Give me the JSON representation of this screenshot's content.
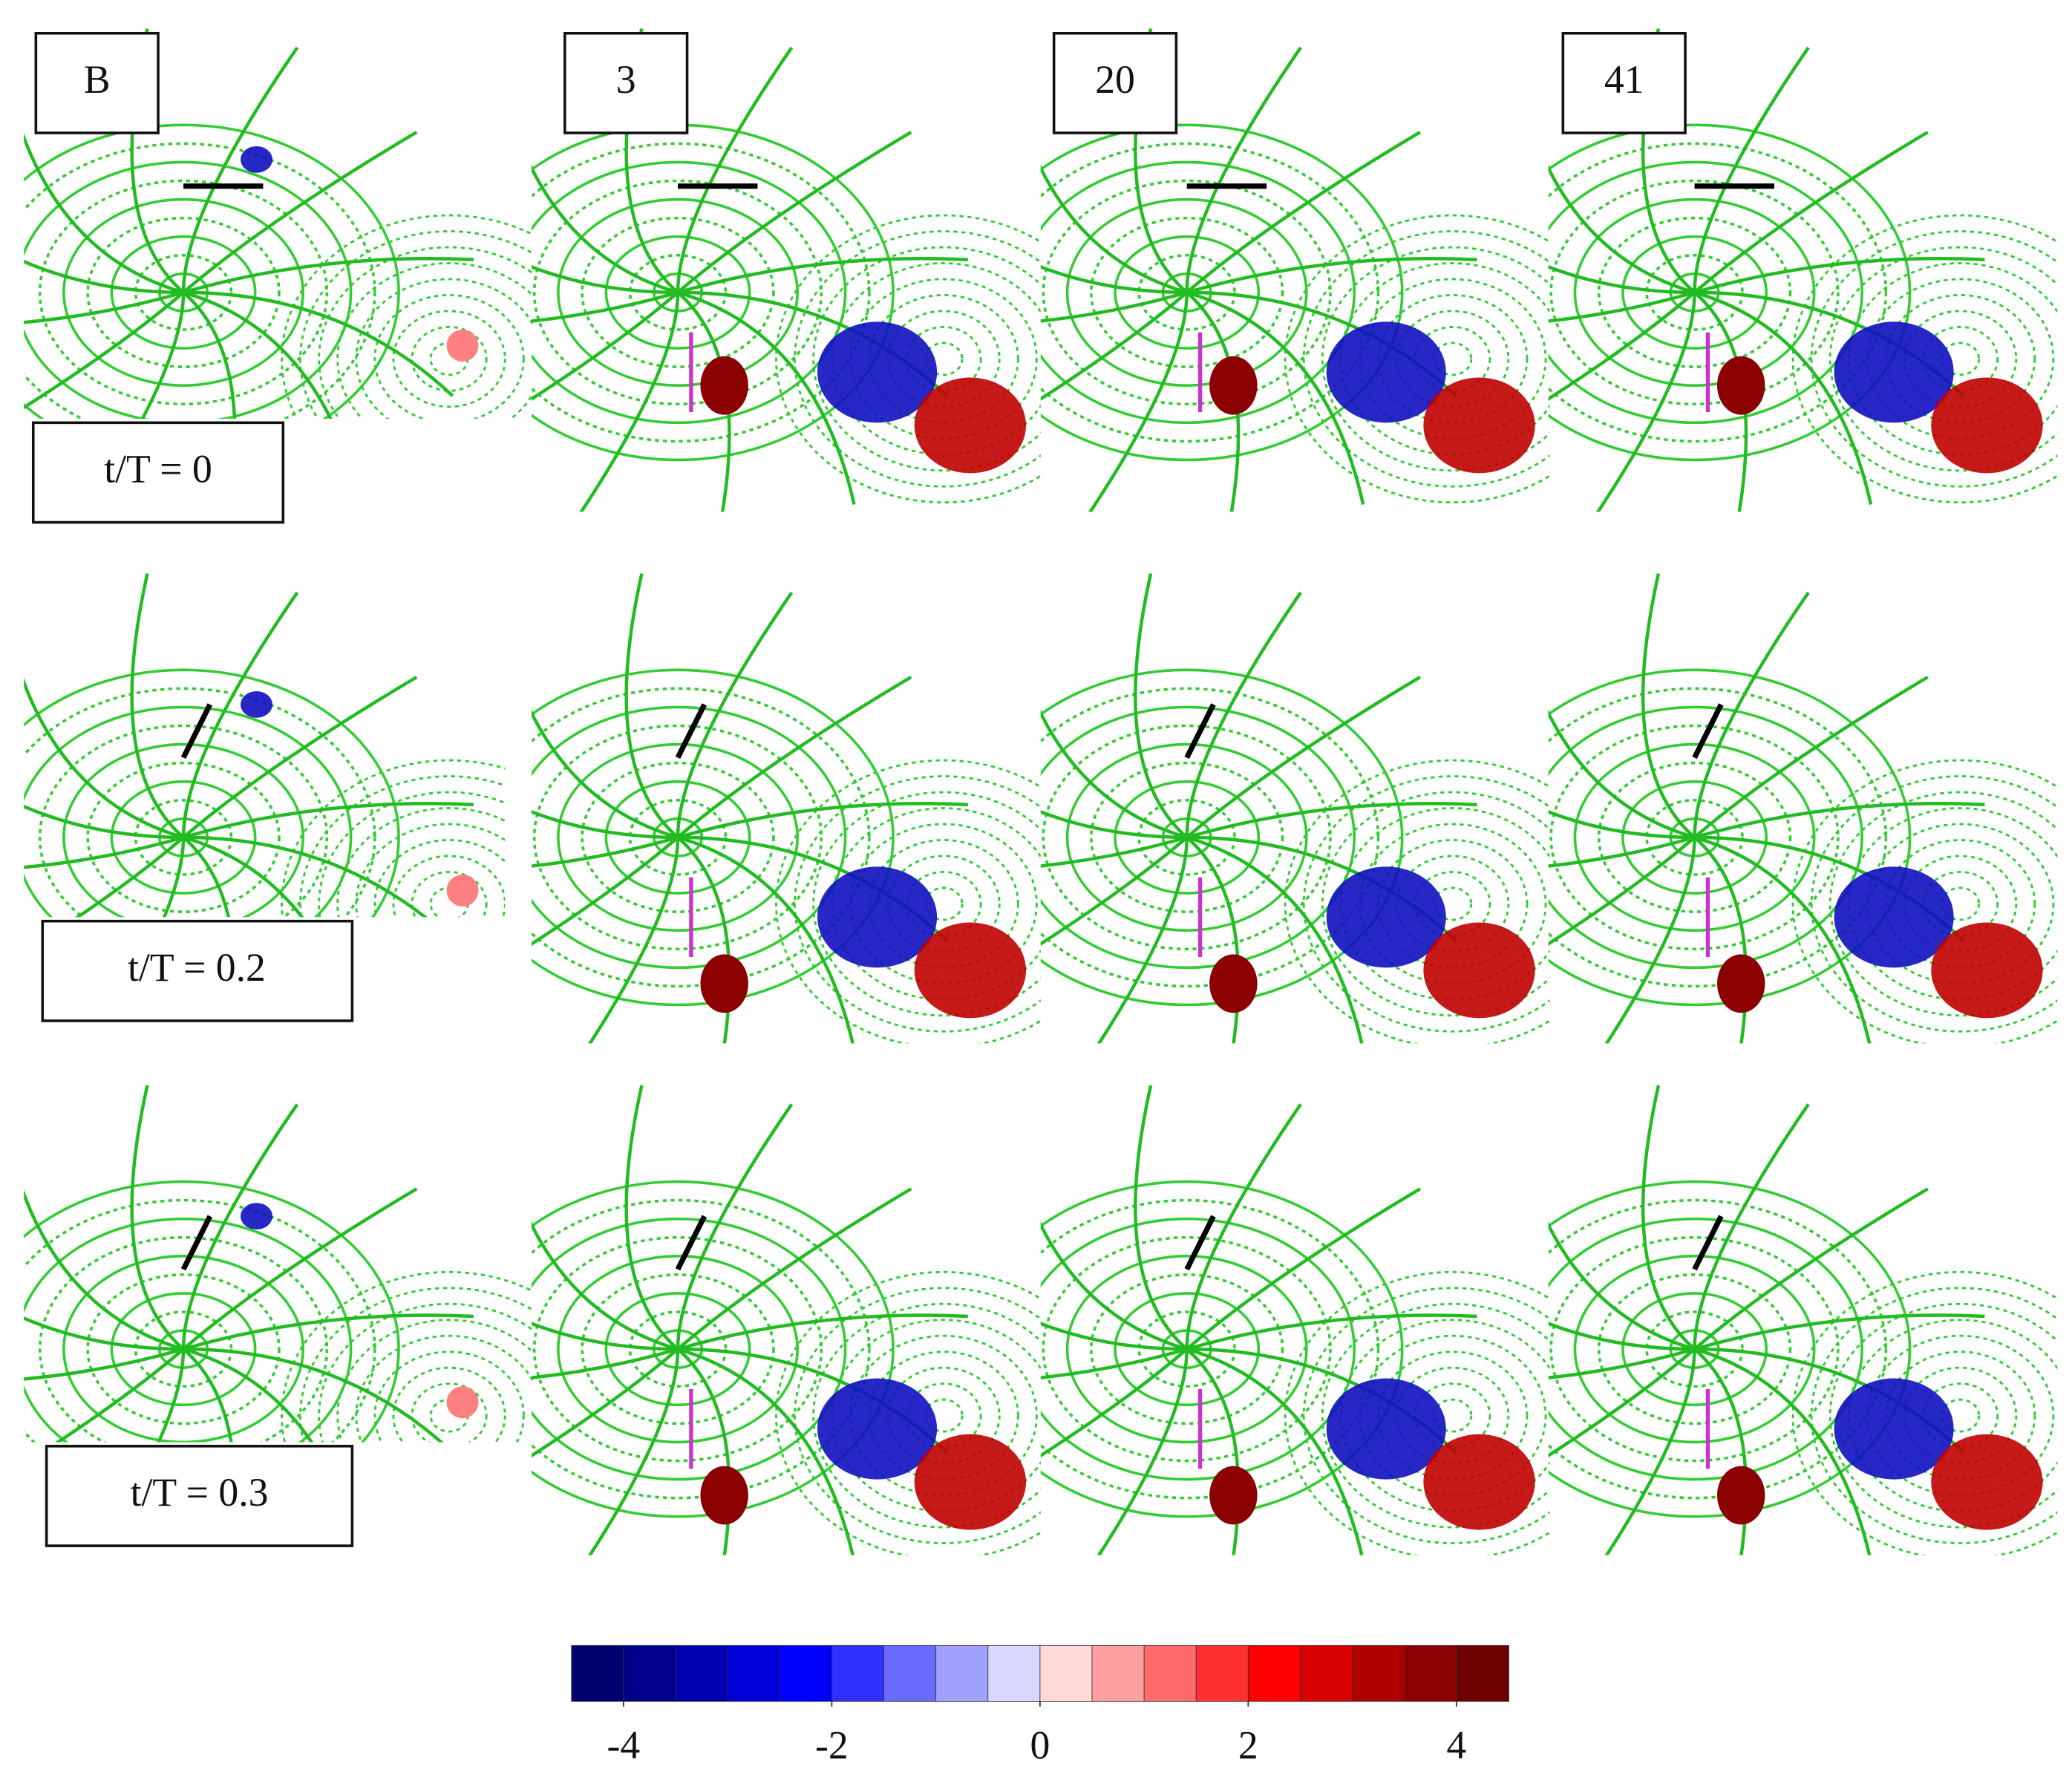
{
  "figure": {
    "column_labels": [
      "B",
      "3",
      "20",
      "41"
    ],
    "row_labels": [
      "t/T = 0",
      "t/T = 0.2",
      "t/T = 0.3"
    ],
    "colorbar": {
      "colors": [
        "#00006e",
        "#00008b",
        "#0000b0",
        "#0000d8",
        "#0000ff",
        "#3030ff",
        "#6a6aff",
        "#a0a0ff",
        "#d8d8ff",
        "#ffd8d8",
        "#ffa0a0",
        "#ff6a6a",
        "#ff3030",
        "#ff0000",
        "#d80000",
        "#b00000",
        "#8b0000",
        "#6e0000"
      ],
      "range": [
        -4.5,
        4.5
      ],
      "ticks": [
        -4,
        -2,
        0,
        2,
        4
      ]
    }
  }
}
